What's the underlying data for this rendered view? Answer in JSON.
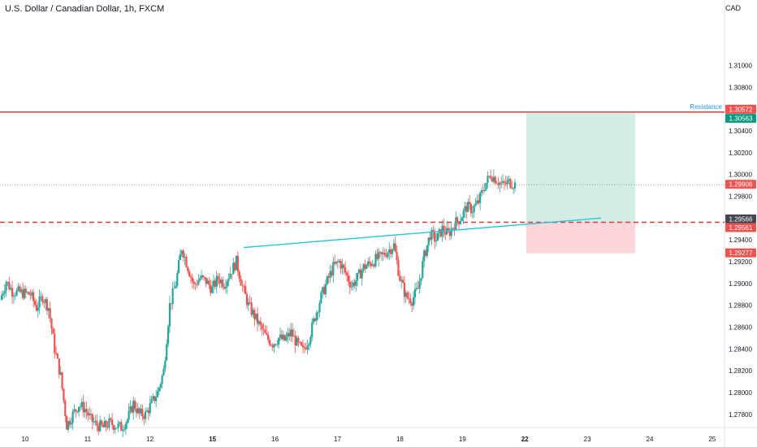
{
  "header": {
    "title": "U.S. Dollar / Canadian Dollar, 1h, FXCM",
    "currency": "CAD"
  },
  "colors": {
    "up": "#26a69a",
    "down": "#ef5350",
    "resistance": "#e53935",
    "support": "#e53935",
    "trendline": "#26c6da",
    "profit_zone": "#d1ede6",
    "loss_zone": "#fcd6da",
    "label_red": "#ef5350",
    "label_green": "#089981",
    "label_dark": "#434651",
    "grid": "#9598a1",
    "axis_text": "#131722"
  },
  "chart_data": {
    "type": "candlestick",
    "title": "U.S. Dollar / Canadian Dollar, 1h, FXCM",
    "ylim": [
      1.2768,
      1.3148
    ],
    "y_ticks": [
      "1.31000",
      "1.30800",
      "1.30400",
      "1.30200",
      "1.30000",
      "1.29800",
      "1.29400",
      "1.29200",
      "1.29000",
      "1.28800",
      "1.28600",
      "1.28400",
      "1.28200",
      "1.28000",
      "1.27800"
    ],
    "x_ticks": [
      "10",
      "11",
      "12",
      "15",
      "16",
      "17",
      "18",
      "19",
      "22",
      "23",
      "24",
      "25"
    ],
    "x_ticks_bold": [
      "15",
      "22"
    ],
    "price_labels": [
      {
        "value": "1.30572",
        "kind": "resistance"
      },
      {
        "value": "1.30563",
        "kind": "target"
      },
      {
        "value": "1.29906",
        "kind": "current"
      },
      {
        "value": "1.29566",
        "kind": "entry"
      },
      {
        "value": "1.29561",
        "kind": "support"
      },
      {
        "value": "1.29277",
        "kind": "stop"
      }
    ],
    "annotations": {
      "resistance_label": "Resistance",
      "resistance_price": 1.30572,
      "support_price": 1.29561,
      "current_price": 1.29906,
      "long_position": {
        "entry": 1.29566,
        "target": 1.30563,
        "stop": 1.29277
      }
    },
    "trendline": {
      "start_price": 1.2933,
      "end_price": 1.296
    },
    "price_path": [
      [
        1.2885,
        1.2902
      ],
      [
        1.2902,
        1.2893
      ],
      [
        1.2893,
        1.2892
      ],
      [
        1.2892,
        1.2891
      ],
      [
        1.2891,
        1.289
      ],
      [
        1.289,
        1.2878
      ],
      [
        1.2878,
        1.2888
      ],
      [
        1.2888,
        1.2878
      ],
      [
        1.2878,
        1.284
      ],
      [
        1.284,
        1.2815
      ],
      [
        1.2815,
        1.277
      ],
      [
        1.277,
        1.278
      ],
      [
        1.278,
        1.2789
      ],
      [
        1.2789,
        1.2785
      ],
      [
        1.2785,
        1.2775
      ],
      [
        1.2775,
        1.277
      ],
      [
        1.277,
        1.2768
      ],
      [
        1.2768,
        1.2772
      ],
      [
        1.2772,
        1.277
      ],
      [
        1.277,
        1.2768
      ],
      [
        1.2768,
        1.2775
      ],
      [
        1.2775,
        1.279
      ],
      [
        1.279,
        1.278
      ],
      [
        1.278,
        1.278
      ],
      [
        1.278,
        1.279
      ],
      [
        1.279,
        1.28
      ],
      [
        1.28,
        1.282
      ],
      [
        1.282,
        1.288
      ],
      [
        1.288,
        1.29
      ],
      [
        1.29,
        1.2933
      ],
      [
        1.2933,
        1.2915
      ],
      [
        1.2915,
        1.2898
      ],
      [
        1.2898,
        1.2905
      ],
      [
        1.2905,
        1.2902
      ],
      [
        1.2902,
        1.2895
      ],
      [
        1.2895,
        1.2905
      ],
      [
        1.2905,
        1.29
      ],
      [
        1.29,
        1.291
      ],
      [
        1.291,
        1.292
      ],
      [
        1.292,
        1.2897
      ],
      [
        1.2897,
        1.288
      ],
      [
        1.288,
        1.287
      ],
      [
        1.287,
        1.286
      ],
      [
        1.286,
        1.285
      ],
      [
        1.285,
        1.2845
      ],
      [
        1.2845,
        1.285
      ],
      [
        1.285,
        1.2848
      ],
      [
        1.2848,
        1.2855
      ],
      [
        1.2855,
        1.2845
      ],
      [
        1.2845,
        1.2838
      ],
      [
        1.2838,
        1.285
      ],
      [
        1.285,
        1.287
      ],
      [
        1.287,
        1.2888
      ],
      [
        1.2888,
        1.2902
      ],
      [
        1.2902,
        1.2915
      ],
      [
        1.2915,
        1.292
      ],
      [
        1.292,
        1.291
      ],
      [
        1.291,
        1.2898
      ],
      [
        1.2898,
        1.2905
      ],
      [
        1.2905,
        1.2915
      ],
      [
        1.2915,
        1.2918
      ],
      [
        1.2918,
        1.2922
      ],
      [
        1.2922,
        1.2925
      ],
      [
        1.2925,
        1.293
      ],
      [
        1.293,
        1.2935
      ],
      [
        1.2935,
        1.2905
      ],
      [
        1.2905,
        1.2888
      ],
      [
        1.2888,
        1.2885
      ],
      [
        1.2885,
        1.2895
      ],
      [
        1.2895,
        1.2925
      ],
      [
        1.2925,
        1.2945
      ],
      [
        1.2945,
        1.294
      ],
      [
        1.294,
        1.295
      ],
      [
        1.295,
        1.2945
      ],
      [
        1.2945,
        1.2955
      ],
      [
        1.2955,
        1.296
      ],
      [
        1.296,
        1.297
      ],
      [
        1.297,
        1.2968
      ],
      [
        1.2968,
        1.2975
      ],
      [
        1.2975,
        1.299
      ],
      [
        1.299,
        1.3
      ],
      [
        1.3,
        1.2995
      ],
      [
        1.2995,
        1.299
      ],
      [
        1.299,
        1.2993
      ],
      [
        1.2993,
        1.2991
      ]
    ]
  }
}
